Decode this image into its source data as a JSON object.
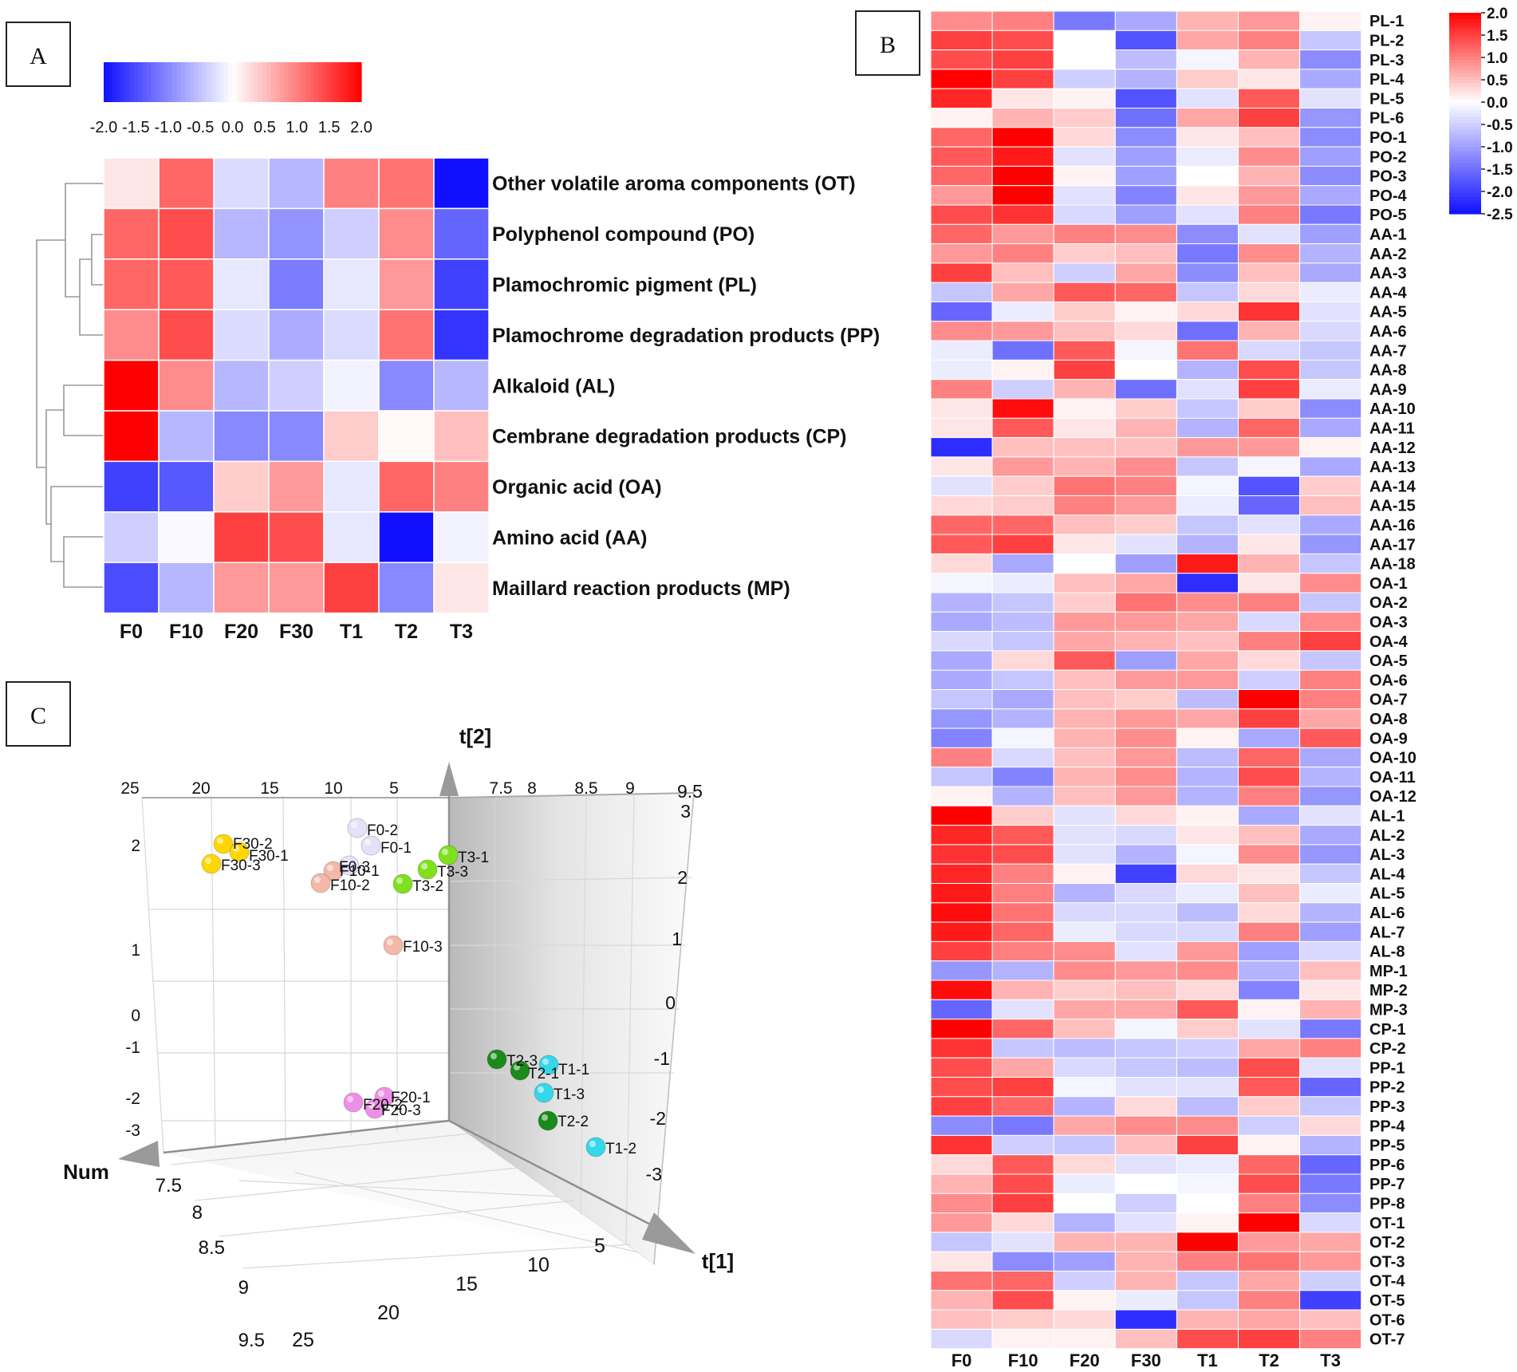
{
  "panel_labels": {
    "a": "A",
    "b": "B",
    "c": "C"
  },
  "chart_data": [
    {
      "id": "A",
      "type": "heatmap",
      "columns": [
        "F0",
        "F10",
        "F20",
        "F30",
        "T1",
        "T2",
        "T3"
      ],
      "rows": [
        "Other volatile aroma components (OT)",
        "Polyphenol compound (PO)",
        "Plamochromic pigment (PL)",
        "Plamochrome degradation products (PP)",
        "Alkaloid (AL)",
        "Cembrane degradation products (CP)",
        "Organic acid (OA)",
        "Amino acid (AA)",
        "Maillard reaction products (MP)"
      ],
      "values": [
        [
          0.2,
          1.2,
          -0.3,
          -0.6,
          1.0,
          1.1,
          -2.0
        ],
        [
          1.2,
          1.4,
          -0.6,
          -0.9,
          -0.4,
          0.9,
          -1.3
        ],
        [
          1.2,
          1.3,
          -0.2,
          -1.1,
          -0.2,
          0.8,
          -1.6
        ],
        [
          0.9,
          1.4,
          -0.3,
          -0.7,
          -0.3,
          1.1,
          -1.7
        ],
        [
          2.0,
          0.9,
          -0.6,
          -0.4,
          -0.1,
          -1.0,
          -0.6
        ],
        [
          2.0,
          -0.6,
          -1.0,
          -1.0,
          0.4,
          0.05,
          0.5
        ],
        [
          -1.6,
          -1.4,
          0.4,
          0.8,
          -0.2,
          1.2,
          1.0
        ],
        [
          -0.4,
          -0.05,
          1.5,
          1.4,
          -0.2,
          -2.0,
          -0.1
        ],
        [
          -1.5,
          -0.6,
          0.8,
          0.8,
          1.5,
          -1.0,
          0.2
        ]
      ],
      "colorbar": {
        "min": -2.0,
        "max": 2.0,
        "ticks": [
          "-2.0",
          "-1.5",
          "-1.0",
          "-0.5",
          "0.0",
          "0.5",
          "1.0",
          "1.5",
          "2.0"
        ]
      },
      "colors": {
        "low": "#1010ff",
        "mid": "#ffffff",
        "high": "#ff0000"
      }
    },
    {
      "id": "B",
      "type": "heatmap",
      "columns": [
        "F0",
        "F10",
        "F20",
        "F30",
        "T1",
        "T2",
        "T3"
      ],
      "rows": [
        "PL-1",
        "PL-2",
        "PL-3",
        "PL-4",
        "PL-5",
        "PL-6",
        "PO-1",
        "PO-2",
        "PO-3",
        "PO-4",
        "PO-5",
        "AA-1",
        "AA-2",
        "AA-3",
        "AA-4",
        "AA-5",
        "AA-6",
        "AA-7",
        "AA-8",
        "AA-9",
        "AA-10",
        "AA-11",
        "AA-12",
        "AA-13",
        "AA-14",
        "AA-15",
        "AA-16",
        "AA-17",
        "AA-18",
        "OA-1",
        "OA-2",
        "OA-3",
        "OA-4",
        "OA-5",
        "OA-6",
        "OA-7",
        "OA-8",
        "OA-9",
        "OA-10",
        "OA-11",
        "OA-12",
        "AL-1",
        "AL-2",
        "AL-3",
        "AL-4",
        "AL-5",
        "AL-6",
        "AL-7",
        "AL-8",
        "MP-1",
        "MP-2",
        "MP-3",
        "CP-1",
        "CP-2",
        "PP-1",
        "PP-2",
        "PP-3",
        "PP-4",
        "PP-5",
        "PP-6",
        "PP-7",
        "PP-8",
        "OT-1",
        "OT-2",
        "OT-3",
        "OT-4",
        "OT-5",
        "OT-6",
        "OT-7"
      ],
      "values": [
        [
          0.9,
          1.0,
          -1.4,
          -0.9,
          0.6,
          0.8,
          0.1
        ],
        [
          1.5,
          1.4,
          0.0,
          -1.8,
          0.7,
          1.0,
          -0.6
        ],
        [
          1.4,
          1.5,
          0.0,
          -0.7,
          -0.1,
          0.6,
          -1.2
        ],
        [
          2.0,
          1.5,
          -0.5,
          -0.8,
          0.4,
          0.2,
          -0.9
        ],
        [
          1.7,
          0.2,
          0.1,
          -1.8,
          -0.3,
          1.3,
          -0.3
        ],
        [
          0.1,
          0.6,
          0.4,
          -1.5,
          0.7,
          1.5,
          -1.1
        ],
        [
          1.2,
          2.0,
          0.3,
          -1.2,
          0.2,
          0.5,
          -1.2
        ],
        [
          1.3,
          1.8,
          -0.3,
          -1.0,
          -0.2,
          0.9,
          -1.0
        ],
        [
          1.2,
          2.0,
          0.1,
          -1.0,
          0.0,
          0.6,
          -1.2
        ],
        [
          0.8,
          2.2,
          -0.3,
          -1.3,
          0.2,
          0.8,
          -0.9
        ],
        [
          1.4,
          1.6,
          -0.4,
          -1.0,
          -0.3,
          1.0,
          -1.4
        ],
        [
          1.2,
          0.8,
          1.0,
          0.9,
          -1.2,
          -0.3,
          -1.0
        ],
        [
          0.8,
          1.0,
          0.4,
          0.5,
          -1.4,
          0.9,
          -0.8
        ],
        [
          1.5,
          0.5,
          -0.5,
          0.7,
          -1.2,
          0.5,
          -0.9
        ],
        [
          -0.6,
          0.7,
          1.3,
          1.2,
          -0.6,
          0.3,
          -0.2
        ],
        [
          -1.6,
          -0.2,
          0.4,
          0.1,
          0.3,
          1.6,
          -0.3
        ],
        [
          0.9,
          0.8,
          0.5,
          0.3,
          -1.5,
          0.6,
          -0.4
        ],
        [
          -0.2,
          -1.5,
          1.3,
          -0.1,
          1.1,
          -0.4,
          -0.6
        ],
        [
          -0.2,
          0.1,
          1.5,
          0.0,
          -0.8,
          1.4,
          -0.6
        ],
        [
          1.0,
          -0.5,
          0.6,
          -1.5,
          -0.3,
          1.5,
          -0.2
        ],
        [
          0.2,
          1.9,
          0.1,
          0.4,
          -0.6,
          0.4,
          -1.2
        ],
        [
          0.2,
          1.3,
          0.2,
          0.6,
          -0.8,
          1.2,
          -0.9
        ],
        [
          -2.2,
          0.5,
          0.5,
          0.5,
          0.8,
          0.8,
          0.1
        ],
        [
          0.2,
          0.8,
          0.6,
          0.9,
          -0.6,
          -0.1,
          -0.9
        ],
        [
          -0.3,
          0.4,
          1.1,
          1.0,
          -0.1,
          -1.8,
          0.4
        ],
        [
          0.3,
          0.4,
          1.0,
          0.8,
          -0.2,
          -1.6,
          0.5
        ],
        [
          1.2,
          1.2,
          0.5,
          0.4,
          -0.6,
          -0.3,
          -0.9
        ],
        [
          1.3,
          1.5,
          0.2,
          -0.3,
          -0.8,
          0.2,
          -1.1
        ],
        [
          0.3,
          -0.9,
          0.0,
          -1.0,
          1.8,
          0.6,
          -0.6
        ],
        [
          -0.1,
          -0.2,
          0.5,
          0.7,
          -2.2,
          0.2,
          0.9
        ],
        [
          -0.8,
          -0.6,
          0.4,
          1.1,
          0.9,
          1.0,
          -0.6
        ],
        [
          -0.9,
          -0.7,
          0.8,
          0.8,
          0.7,
          -0.4,
          0.9
        ],
        [
          -0.4,
          -0.6,
          0.7,
          0.6,
          0.5,
          1.0,
          1.5
        ],
        [
          -0.9,
          0.3,
          1.3,
          -1.0,
          0.7,
          0.3,
          -0.6
        ],
        [
          -0.9,
          -0.6,
          0.5,
          0.8,
          0.8,
          -0.5,
          1.0
        ],
        [
          -0.6,
          -0.9,
          0.5,
          0.4,
          -0.7,
          2.0,
          1.0
        ],
        [
          -1.1,
          -0.8,
          0.6,
          0.8,
          0.7,
          1.5,
          0.7
        ],
        [
          -1.3,
          -0.1,
          0.6,
          0.9,
          0.1,
          -0.9,
          1.3
        ],
        [
          1.0,
          -0.4,
          0.5,
          0.8,
          -0.7,
          1.2,
          -0.9
        ],
        [
          -0.6,
          -1.3,
          0.6,
          0.9,
          -0.8,
          1.4,
          -0.8
        ],
        [
          0.1,
          -0.8,
          0.5,
          0.8,
          -0.8,
          1.0,
          -1.1
        ],
        [
          2.0,
          0.4,
          -0.3,
          0.3,
          0.1,
          -0.9,
          -0.3
        ],
        [
          1.7,
          1.3,
          -0.3,
          -0.4,
          0.2,
          0.5,
          -0.9
        ],
        [
          1.6,
          1.4,
          -0.3,
          -0.8,
          -0.1,
          0.9,
          -1.1
        ],
        [
          1.7,
          1.0,
          0.1,
          -2.0,
          0.3,
          0.2,
          -0.6
        ],
        [
          1.8,
          1.0,
          -0.8,
          -0.4,
          -0.2,
          0.5,
          -0.2
        ],
        [
          1.9,
          1.1,
          -0.4,
          -0.4,
          -0.7,
          0.3,
          -0.8
        ],
        [
          1.8,
          1.2,
          -0.2,
          -0.4,
          -0.4,
          1.0,
          -1.0
        ],
        [
          1.5,
          1.0,
          0.9,
          -0.3,
          0.8,
          -1.0,
          -0.4
        ],
        [
          -1.1,
          -0.8,
          0.9,
          0.8,
          0.9,
          -0.8,
          0.5
        ],
        [
          1.9,
          0.6,
          0.4,
          0.5,
          0.3,
          -1.3,
          0.2
        ],
        [
          -1.6,
          -0.3,
          0.7,
          0.7,
          1.3,
          0.1,
          0.6
        ],
        [
          2.0,
          1.2,
          0.5,
          -0.1,
          0.4,
          -0.3,
          -1.4
        ],
        [
          1.6,
          -0.6,
          -0.7,
          -0.6,
          -0.5,
          0.7,
          1.0
        ],
        [
          1.4,
          0.7,
          -0.4,
          -0.6,
          -0.7,
          1.4,
          -0.3
        ],
        [
          1.4,
          1.5,
          -0.1,
          -0.3,
          -0.3,
          1.3,
          -1.6
        ],
        [
          1.5,
          1.2,
          -0.8,
          0.3,
          -0.7,
          0.4,
          -0.6
        ],
        [
          -1.2,
          -1.4,
          0.7,
          0.9,
          0.9,
          -0.5,
          0.3
        ],
        [
          1.6,
          -0.5,
          -0.6,
          0.5,
          1.5,
          0.1,
          -0.8
        ],
        [
          0.3,
          1.3,
          0.3,
          -0.3,
          -0.2,
          1.2,
          -1.6
        ],
        [
          0.6,
          1.4,
          -0.2,
          0.0,
          -0.1,
          1.4,
          -1.4
        ],
        [
          0.9,
          1.5,
          0.0,
          -0.5,
          0.0,
          1.0,
          -1.2
        ],
        [
          0.8,
          0.3,
          -0.8,
          -0.3,
          0.1,
          2.2,
          -0.4
        ],
        [
          -0.6,
          -0.3,
          0.6,
          0.6,
          2.0,
          0.8,
          0.7
        ],
        [
          0.2,
          -1.2,
          -1.0,
          0.6,
          1.0,
          1.1,
          0.8
        ],
        [
          1.1,
          1.2,
          -0.5,
          0.6,
          -0.6,
          0.7,
          -0.5
        ],
        [
          0.6,
          1.4,
          0.1,
          -0.2,
          -0.6,
          1.0,
          -2.0
        ],
        [
          0.5,
          0.4,
          0.3,
          -2.2,
          0.6,
          0.7,
          0.5
        ],
        [
          -0.4,
          0.1,
          0.1,
          0.5,
          1.4,
          1.5,
          1.0
        ]
      ],
      "colorbar": {
        "min": -2.5,
        "max": 2.0,
        "ticks": [
          "2.0",
          "1.5",
          "1.0",
          "0.5",
          "0.0",
          "-0.5",
          "-1.0",
          "-1.5",
          "-2.0",
          "-2.5"
        ]
      },
      "colors": {
        "low": "#1010ff",
        "mid": "#ffffff",
        "high": "#ff0000"
      }
    },
    {
      "id": "C",
      "type": "scatter",
      "subtype": "3d-score-plot",
      "axes": {
        "x": "t[1]",
        "y": "t[2]",
        "z": "Num"
      },
      "back_top_ticks": [
        "25",
        "20",
        "15",
        "10",
        "5"
      ],
      "right_top_ticks": [
        "7.5",
        "8",
        "8.5",
        "9",
        "9.5"
      ],
      "left_ticks": [
        "2",
        "1",
        "0",
        "-1",
        "-2",
        "-3"
      ],
      "right_ticks": [
        "3",
        "2",
        "1",
        "0",
        "-1",
        "-2",
        "-3"
      ],
      "floor_left_ticks": [
        "7.5",
        "8",
        "8.5",
        "9",
        "9.5"
      ],
      "floor_bottom_ticks": [
        "25",
        "20",
        "15",
        "10",
        "5"
      ],
      "points": [
        {
          "label": "F30-2",
          "group": "F30",
          "color": "#ffd700"
        },
        {
          "label": "F30-1",
          "group": "F30",
          "color": "#ffd700"
        },
        {
          "label": "F30-3",
          "group": "F30",
          "color": "#ffd700"
        },
        {
          "label": "F0-2",
          "group": "F0",
          "color": "#e6e0f8"
        },
        {
          "label": "F0-1",
          "group": "F0",
          "color": "#e6e0f8"
        },
        {
          "label": "F0-3",
          "group": "F0",
          "color": "#e6e0f8"
        },
        {
          "label": "F10-1",
          "group": "F10",
          "color": "#f4b7a8"
        },
        {
          "label": "F10-2",
          "group": "F10",
          "color": "#f4b7a8"
        },
        {
          "label": "F10-3",
          "group": "F10",
          "color": "#f4b7a8"
        },
        {
          "label": "T3-1",
          "group": "T3",
          "color": "#7fe01f"
        },
        {
          "label": "T3-3",
          "group": "T3",
          "color": "#7fe01f"
        },
        {
          "label": "T3-2",
          "group": "T3",
          "color": "#7fe01f"
        },
        {
          "label": "F20-1",
          "group": "F20",
          "color": "#ee8fe6"
        },
        {
          "label": "F20-2",
          "group": "F20",
          "color": "#ee8fe6"
        },
        {
          "label": "F20-3",
          "group": "F20",
          "color": "#ee8fe6"
        },
        {
          "label": "T2-3",
          "group": "T2",
          "color": "#1a8a1a"
        },
        {
          "label": "T2-1",
          "group": "T2",
          "color": "#1a8a1a"
        },
        {
          "label": "T2-2",
          "group": "T2",
          "color": "#1a8a1a"
        },
        {
          "label": "T1-1",
          "group": "T1",
          "color": "#33d8ea"
        },
        {
          "label": "T1-3",
          "group": "T1",
          "color": "#33d8ea"
        },
        {
          "label": "T1-2",
          "group": "T1",
          "color": "#33d8ea"
        }
      ]
    }
  ]
}
